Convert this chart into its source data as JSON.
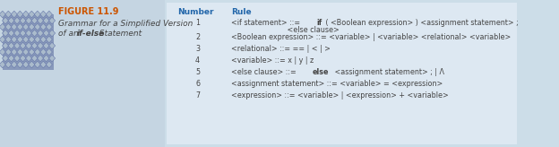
{
  "figure_label": "FIGURE 11.9",
  "caption_line1": "Grammar for a Simplified Version",
  "caption_line2_pre": "of an ",
  "caption_bold_italic": "if-else",
  "caption_line2_post": " Statement",
  "col_number": "Number",
  "col_rule": "Rule",
  "rows": [
    {
      "num": "1",
      "segments": [
        {
          "text": "<if statement> ::= ",
          "bold": false
        },
        {
          "text": "if",
          "bold": true
        },
        {
          "text": " ( <Boolean expression> ) <assignment statement> ;",
          "bold": false
        }
      ],
      "continuation": "                         <else clause>"
    },
    {
      "num": "2",
      "segments": [
        {
          "text": "<Boolean expression> ::= <variable> | <variable> <relational> <variable>",
          "bold": false
        }
      ],
      "continuation": null
    },
    {
      "num": "3",
      "segments": [
        {
          "text": "<relational> ::= == | < | >",
          "bold": false
        }
      ],
      "continuation": null
    },
    {
      "num": "4",
      "segments": [
        {
          "text": "<variable> ::= x | y | z",
          "bold": false
        }
      ],
      "continuation": null
    },
    {
      "num": "5",
      "segments": [
        {
          "text": "<else clause> ::= ",
          "bold": false
        },
        {
          "text": "else",
          "bold": true
        },
        {
          "text": " <assignment statement> ; | Λ",
          "bold": false
        }
      ],
      "continuation": null
    },
    {
      "num": "6",
      "segments": [
        {
          "text": "<assignment statement> ::= <variable> = <expression>",
          "bold": false
        }
      ],
      "continuation": null
    },
    {
      "num": "7",
      "segments": [
        {
          "text": "<expression> ::= <variable> | <expression> + <variable>",
          "bold": false
        }
      ],
      "continuation": null
    }
  ],
  "bg_color": "#ccdde8",
  "right_bg": "#dde8f2",
  "left_bg": "#c5d5e2",
  "figure_label_color": "#cc5500",
  "header_color": "#2266aa",
  "text_color": "#444444",
  "thumb_base": "#8899bb",
  "thumb_diamond": "#aabbcc",
  "thumb_edge": "#6677aa"
}
